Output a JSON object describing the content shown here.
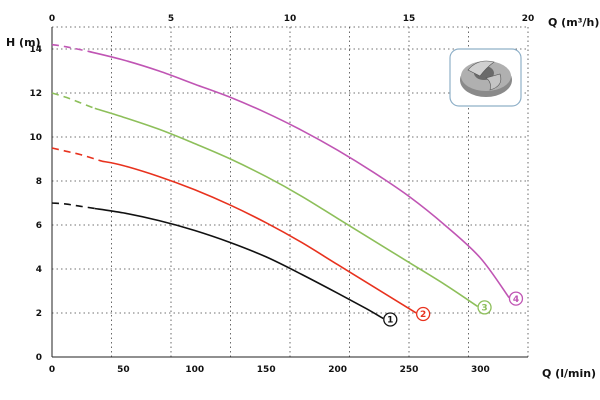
{
  "chart_data": {
    "type": "line",
    "title": "",
    "ylabel": "H (m)",
    "xlabel_bottom": "Q (l/min)",
    "xlabel_top": "Q (m³/h)",
    "ylim": [
      0,
      15
    ],
    "xlim_bottom": [
      0,
      333.33
    ],
    "xlim_top": [
      0,
      20
    ],
    "yticks": [
      "0",
      "2",
      "4",
      "6",
      "8",
      "10",
      "12",
      "14"
    ],
    "xticks_bottom": [
      "0",
      "50",
      "100",
      "150",
      "200",
      "250",
      "300"
    ],
    "xticks_top": [
      "0",
      "5",
      "10",
      "15",
      "20"
    ],
    "grid": true,
    "inset_image": "impeller-photo",
    "series": [
      {
        "name": "1",
        "color": "#111111",
        "dashed_until_x": 30,
        "x": [
          0,
          10,
          20,
          30,
          50,
          75,
          100,
          125,
          150,
          175,
          200,
          220,
          232
        ],
        "y": [
          7.0,
          6.95,
          6.85,
          6.75,
          6.55,
          6.2,
          5.75,
          5.2,
          4.55,
          3.75,
          2.9,
          2.2,
          1.75
        ]
      },
      {
        "name": "2",
        "color": "#e8321e",
        "dashed_until_x": 35,
        "x": [
          0,
          10,
          20,
          35,
          50,
          75,
          100,
          125,
          150,
          175,
          200,
          225,
          245,
          255
        ],
        "y": [
          9.5,
          9.35,
          9.2,
          8.9,
          8.7,
          8.2,
          7.6,
          6.9,
          6.1,
          5.2,
          4.2,
          3.2,
          2.4,
          2.0
        ]
      },
      {
        "name": "3",
        "color": "#8dbf5a",
        "dashed_until_x": 30,
        "x": [
          0,
          10,
          20,
          30,
          50,
          75,
          100,
          125,
          150,
          175,
          200,
          225,
          250,
          275,
          298
        ],
        "y": [
          12.0,
          11.8,
          11.55,
          11.3,
          10.9,
          10.35,
          9.7,
          9.0,
          8.2,
          7.3,
          6.3,
          5.3,
          4.3,
          3.3,
          2.3
        ]
      },
      {
        "name": "4",
        "color": "#c055b4",
        "dashed_until_x": 25,
        "x": [
          0,
          10,
          25,
          50,
          75,
          100,
          125,
          150,
          175,
          200,
          225,
          250,
          275,
          300,
          320
        ],
        "y": [
          14.2,
          14.1,
          13.9,
          13.5,
          13.0,
          12.4,
          11.8,
          11.1,
          10.3,
          9.4,
          8.4,
          7.3,
          6.0,
          4.5,
          2.7
        ]
      }
    ]
  }
}
